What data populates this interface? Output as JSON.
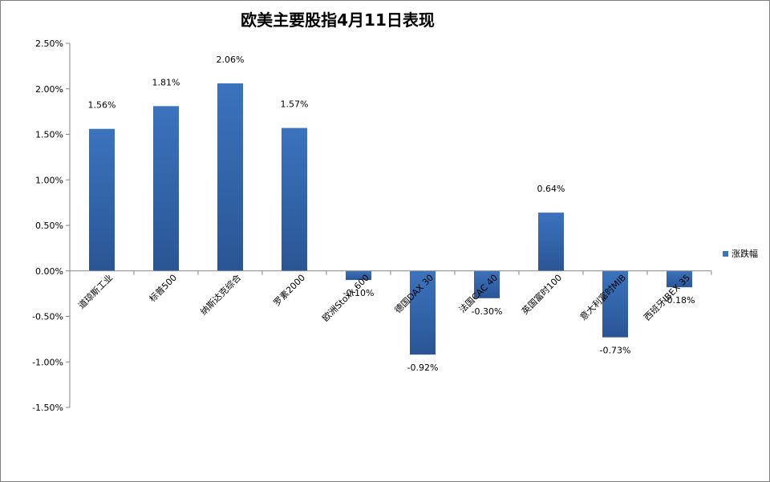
{
  "chart_data": {
    "type": "bar",
    "title": "欧美主要股指4月11日表现",
    "categories": [
      "道琼斯工业",
      "标普500",
      "纳斯达克综合",
      "罗素2000",
      "欧洲Stoxx 600",
      "德国DAX 30",
      "法国CAC 40",
      "英国富时100",
      "意大利富时MIB",
      "西班牙IBEX 35"
    ],
    "series": [
      {
        "name": "涨跌幅",
        "values": [
          1.56,
          1.81,
          2.06,
          1.57,
          -0.1,
          -0.92,
          -0.3,
          0.64,
          -0.73,
          -0.18
        ]
      }
    ],
    "data_labels": [
      "1.56%",
      "1.81%",
      "2.06%",
      "1.57%",
      "-0.10%",
      "-0.92%",
      "-0.30%",
      "0.64%",
      "-0.73%",
      "-0.18%"
    ],
    "ytick_labels": [
      "2.50%",
      "2.00%",
      "1.50%",
      "1.00%",
      "0.50%",
      "0.00%",
      "-0.50%",
      "-1.00%",
      "-1.50%"
    ],
    "ylim": [
      -1.5,
      2.5
    ],
    "xlabel": "",
    "ylabel": "",
    "grid": false,
    "legend_position": "right",
    "colors": {
      "bar": "#3b73bd",
      "bar_dark": "#2a5595",
      "axis": "#868686"
    }
  }
}
